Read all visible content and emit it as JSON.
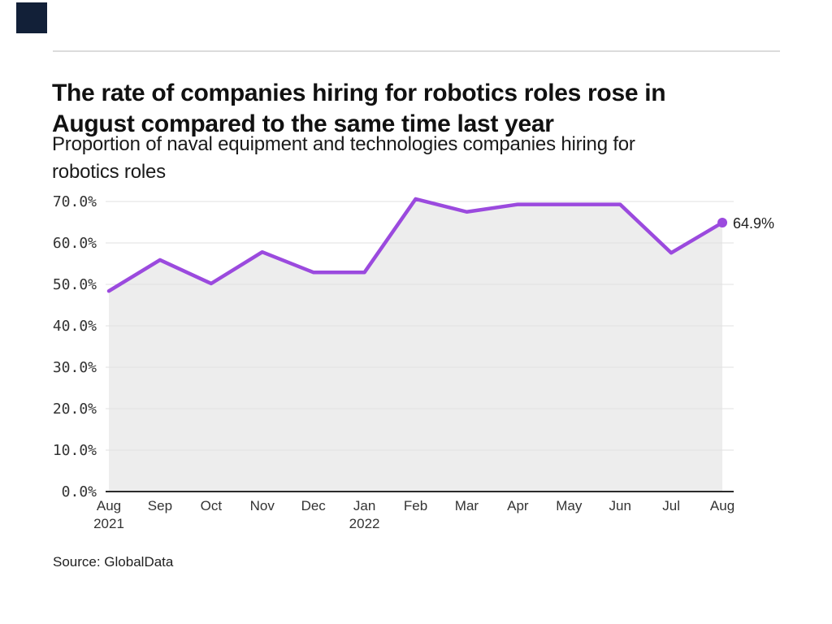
{
  "brand": {
    "mark_color": "#122038"
  },
  "chart_data": {
    "type": "line",
    "title": "The rate of companies hiring for robotics roles rose in August compared to the same time last year",
    "subtitle": "Proportion of naval equipment and technologies companies hiring for robotics roles",
    "categories": [
      "Aug",
      "Sep",
      "Oct",
      "Nov",
      "Dec",
      "Jan",
      "Feb",
      "Mar",
      "Apr",
      "May",
      "Jun",
      "Jul",
      "Aug"
    ],
    "category_sublabels": [
      {
        "index": 0,
        "text": "2021"
      },
      {
        "index": 5,
        "text": "2022"
      }
    ],
    "values": [
      48.4,
      55.9,
      50.2,
      57.8,
      52.9,
      52.9,
      70.6,
      67.5,
      69.3,
      69.3,
      69.3,
      57.6,
      64.9
    ],
    "end_label": "64.9%",
    "ytick_labels": [
      "0.0%",
      "10.0%",
      "20.0%",
      "30.0%",
      "40.0%",
      "50.0%",
      "60.0%",
      "70.0%"
    ],
    "ytick_step": 10,
    "ylim": [
      0,
      70
    ],
    "xlabel": "",
    "ylabel": "",
    "grid": "horizontal",
    "legend": "none",
    "line_color": "#9B4ADE",
    "fill_color": "#EDEDED",
    "grid_color": "#E1E1E1",
    "axis_color": "#2B2B2B",
    "tick_color": "#333333",
    "source": "Source: GlobalData"
  }
}
